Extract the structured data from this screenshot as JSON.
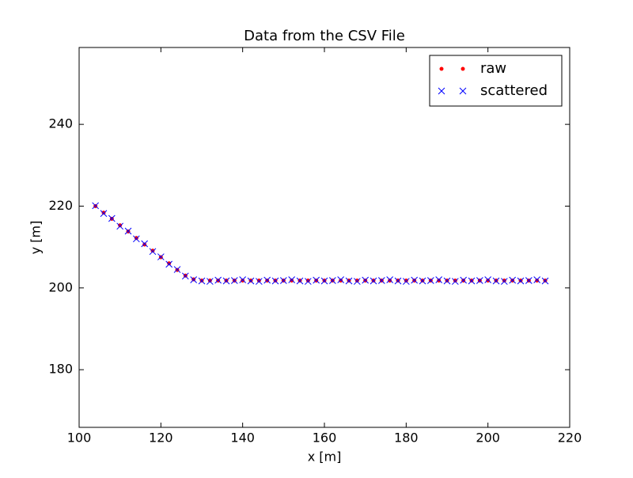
{
  "chart_data": {
    "type": "scatter",
    "title": "Data from the CSV File",
    "x_label": "x [m]",
    "y_label": "y [m]",
    "x": [
      104,
      106,
      108,
      110,
      112,
      114,
      116,
      118,
      120,
      122,
      124,
      126,
      128,
      130,
      132,
      134,
      136,
      138,
      140,
      142,
      144,
      146,
      148,
      150,
      152,
      154,
      156,
      158,
      160,
      162,
      164,
      166,
      168,
      170,
      172,
      174,
      176,
      178,
      180,
      182,
      184,
      186,
      188,
      190,
      192,
      194,
      196,
      198,
      200,
      202,
      204,
      206,
      208,
      210,
      212,
      214
    ],
    "series": [
      {
        "name": "raw",
        "color": "#ff0000",
        "marker": "o",
        "values": [
          220.0,
          218.4,
          216.9,
          215.3,
          213.8,
          212.2,
          210.6,
          209.1,
          207.5,
          206.0,
          204.4,
          203.0,
          202.1,
          201.8,
          201.8,
          201.8,
          201.8,
          201.8,
          201.8,
          201.8,
          201.8,
          201.8,
          201.8,
          201.8,
          201.8,
          201.8,
          201.8,
          201.8,
          201.8,
          201.8,
          201.8,
          201.8,
          201.8,
          201.8,
          201.8,
          201.8,
          201.8,
          201.8,
          201.8,
          201.8,
          201.8,
          201.8,
          201.8,
          201.8,
          201.8,
          201.8,
          201.8,
          201.8,
          201.8,
          201.8,
          201.8,
          201.8,
          201.8,
          201.8,
          201.8,
          201.8
        ]
      },
      {
        "name": "scattered",
        "color": "#0000ff",
        "marker": "x",
        "values": [
          220.1,
          218.2,
          217.0,
          215.1,
          213.9,
          212.0,
          210.8,
          208.9,
          207.6,
          205.8,
          204.5,
          202.9,
          202.0,
          201.7,
          201.6,
          201.9,
          201.7,
          201.8,
          202.0,
          201.7,
          201.6,
          201.9,
          201.7,
          201.8,
          202.0,
          201.7,
          201.6,
          201.9,
          201.7,
          201.8,
          202.0,
          201.7,
          201.6,
          201.9,
          201.7,
          201.8,
          202.0,
          201.7,
          201.6,
          201.9,
          201.7,
          201.8,
          202.0,
          201.7,
          201.6,
          201.9,
          201.7,
          201.8,
          202.0,
          201.7,
          201.6,
          201.9,
          201.7,
          201.8,
          202.0,
          201.7
        ]
      }
    ],
    "xlim": [
      100,
      220
    ],
    "xticks": [
      100,
      120,
      140,
      160,
      180,
      200,
      220
    ],
    "ylim": [
      165.9,
      258.8
    ],
    "yticks": [
      180,
      200,
      220,
      240
    ],
    "grid": false,
    "legend": "upper right"
  }
}
